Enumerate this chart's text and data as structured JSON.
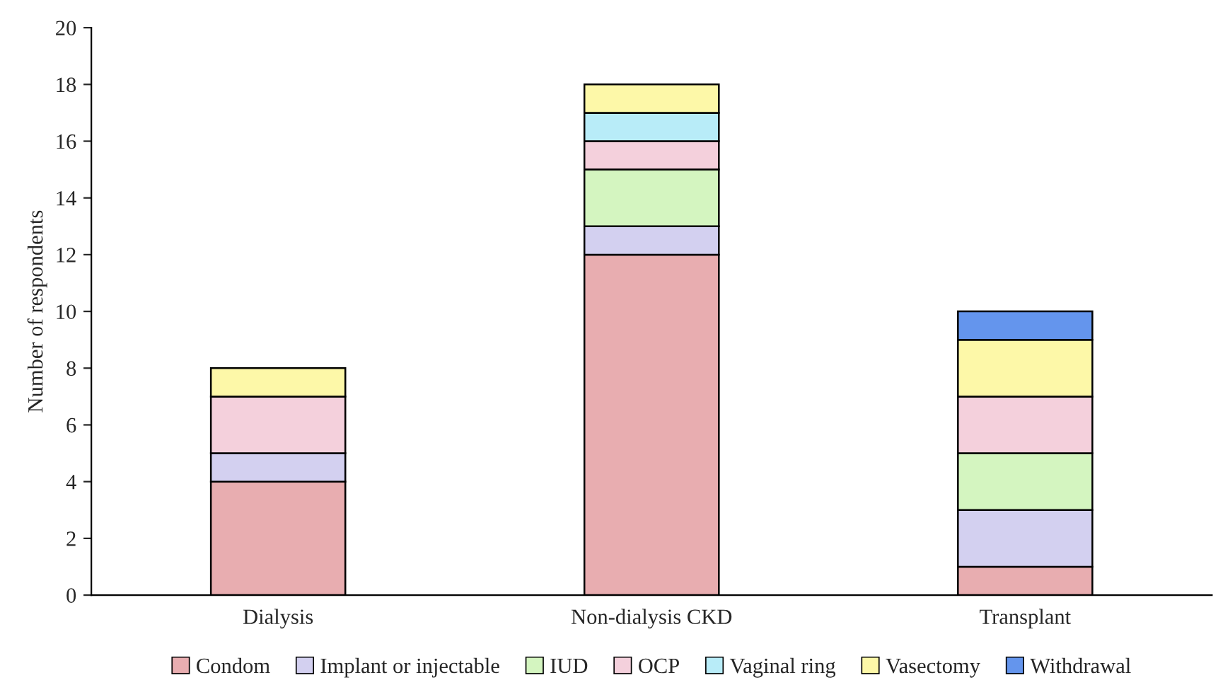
{
  "chart_data": {
    "type": "bar",
    "stacked": true,
    "ylabel": "Number of respondents",
    "categories": [
      "Dialysis",
      "Non-dialysis CKD",
      "Transplant"
    ],
    "series": [
      {
        "name": "Condom",
        "color": "#e8adb0",
        "values": [
          4,
          12,
          1
        ]
      },
      {
        "name": "Implant or injectable",
        "color": "#d3d0f0",
        "values": [
          1,
          1,
          2
        ]
      },
      {
        "name": "IUD",
        "color": "#d4f5c0",
        "values": [
          0,
          2,
          2
        ]
      },
      {
        "name": "OCP",
        "color": "#f4d0dc",
        "values": [
          2,
          1,
          2
        ]
      },
      {
        "name": "Vaginal ring",
        "color": "#b8ecf8",
        "values": [
          0,
          1,
          0
        ]
      },
      {
        "name": "Vasectomy",
        "color": "#fdf8a8",
        "values": [
          1,
          1,
          2
        ]
      },
      {
        "name": "Withdrawal",
        "color": "#6495ed",
        "values": [
          0,
          0,
          1
        ]
      }
    ],
    "ylim": [
      0,
      20
    ],
    "yticks": [
      0,
      2,
      4,
      6,
      8,
      10,
      12,
      14,
      16,
      18,
      20
    ],
    "grid": false,
    "legend": "bottom"
  }
}
